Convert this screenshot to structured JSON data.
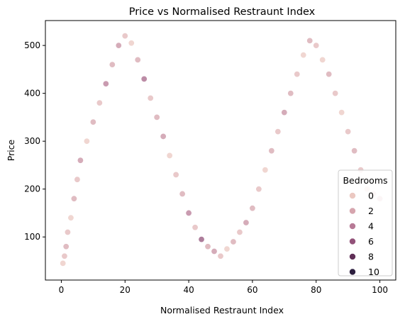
{
  "chart_data": {
    "type": "scatter",
    "title": "Price vs Normalised Restraunt Index",
    "xlabel": "Normalised Restraunt Index",
    "ylabel": "Price",
    "xlim": [
      -5,
      105
    ],
    "ylim": [
      10,
      552
    ],
    "xticks": [
      0,
      20,
      40,
      60,
      80,
      100
    ],
    "yticks": [
      100,
      200,
      300,
      400,
      500
    ],
    "xtick_labels": [
      "0",
      "20",
      "40",
      "60",
      "80",
      "100"
    ],
    "ytick_labels": [
      "100",
      "200",
      "300",
      "400",
      "500"
    ],
    "grid": false,
    "legend": {
      "title": "Bedrooms",
      "placement": "lower-right",
      "entries": [
        {
          "label": "0",
          "bedrooms": 0,
          "color": "#ebc8c1"
        },
        {
          "label": "2",
          "bedrooms": 2,
          "color": "#d6a5ae"
        },
        {
          "label": "4",
          "bedrooms": 4,
          "color": "#b77a96"
        },
        {
          "label": "6",
          "bedrooms": 6,
          "color": "#925279"
        },
        {
          "label": "8",
          "bedrooms": 8,
          "color": "#602f57"
        },
        {
          "label": "10",
          "bedrooms": 10,
          "color": "#2c1e3e"
        }
      ]
    },
    "hue_variable": "Bedrooms",
    "point_edge_color": "#ffffff",
    "point_alpha": 0.75,
    "series": [
      {
        "x": [
          0.5,
          1,
          1.5,
          2,
          3,
          4,
          5,
          6,
          8,
          10,
          12,
          14,
          16,
          18,
          20,
          22,
          24,
          26,
          28,
          30,
          32,
          34,
          36,
          38,
          40,
          42,
          44,
          46,
          48,
          50,
          52,
          54,
          56,
          58,
          60,
          62,
          64,
          66,
          68,
          70,
          72,
          74,
          76,
          78,
          80,
          82,
          84,
          86,
          88,
          90,
          92,
          94,
          96,
          98,
          100
        ],
        "y": [
          45,
          60,
          80,
          110,
          140,
          180,
          220,
          260,
          300,
          340,
          380,
          420,
          460,
          500,
          520,
          505,
          470,
          430,
          390,
          350,
          310,
          270,
          230,
          190,
          150,
          120,
          95,
          80,
          70,
          60,
          75,
          90,
          110,
          130,
          160,
          200,
          240,
          280,
          320,
          360,
          400,
          440,
          480,
          510,
          500,
          470,
          440,
          400,
          360,
          320,
          280,
          240,
          200,
          190,
          180
        ],
        "bedrooms": [
          0,
          1,
          2,
          1,
          0,
          2,
          1,
          3,
          0,
          2,
          1,
          4,
          2,
          3,
          1,
          0,
          2,
          5,
          1,
          2,
          3,
          0,
          1,
          2,
          4,
          1,
          6,
          2,
          3,
          1,
          0,
          2,
          1,
          3,
          2,
          1,
          0,
          2,
          1,
          3,
          2,
          1,
          0,
          2,
          1,
          0,
          2,
          1,
          0,
          1,
          2,
          1,
          0,
          1,
          2
        ]
      }
    ]
  }
}
